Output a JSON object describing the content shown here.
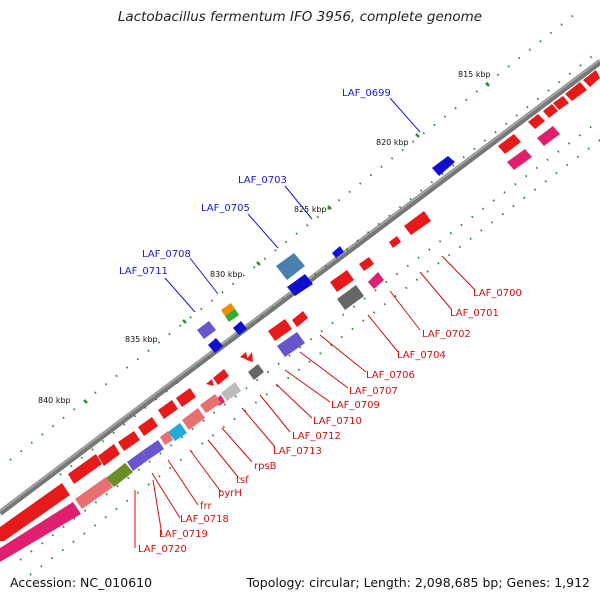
{
  "title": "Lactobacillus fermentum IFO 3956, complete genome",
  "footer": {
    "accession": "Accession: NC_010610",
    "summary": "Topology: circular; Length: 2,098,685 bp; Genes: 1,912"
  },
  "ticks": [
    "815 kbp",
    "820 kbp",
    "825 kbp",
    "830 kbp",
    "835 kbp",
    "840 kbp"
  ],
  "labels_top": [
    "LAF_0699",
    "LAF_0703",
    "LAF_0705",
    "LAF_0708",
    "LAF_0711"
  ],
  "labels_bottom": [
    "LAF_0700",
    "LAF_0701",
    "LAF_0702",
    "LAF_0704",
    "LAF_0706",
    "LAF_0707",
    "LAF_0709",
    "LAF_0710",
    "LAF_0712",
    "LAF_0713",
    "rpsB",
    "tsf",
    "pyrH",
    "frr",
    "LAF_0718",
    "LAF_0719",
    "LAF_0720"
  ]
}
